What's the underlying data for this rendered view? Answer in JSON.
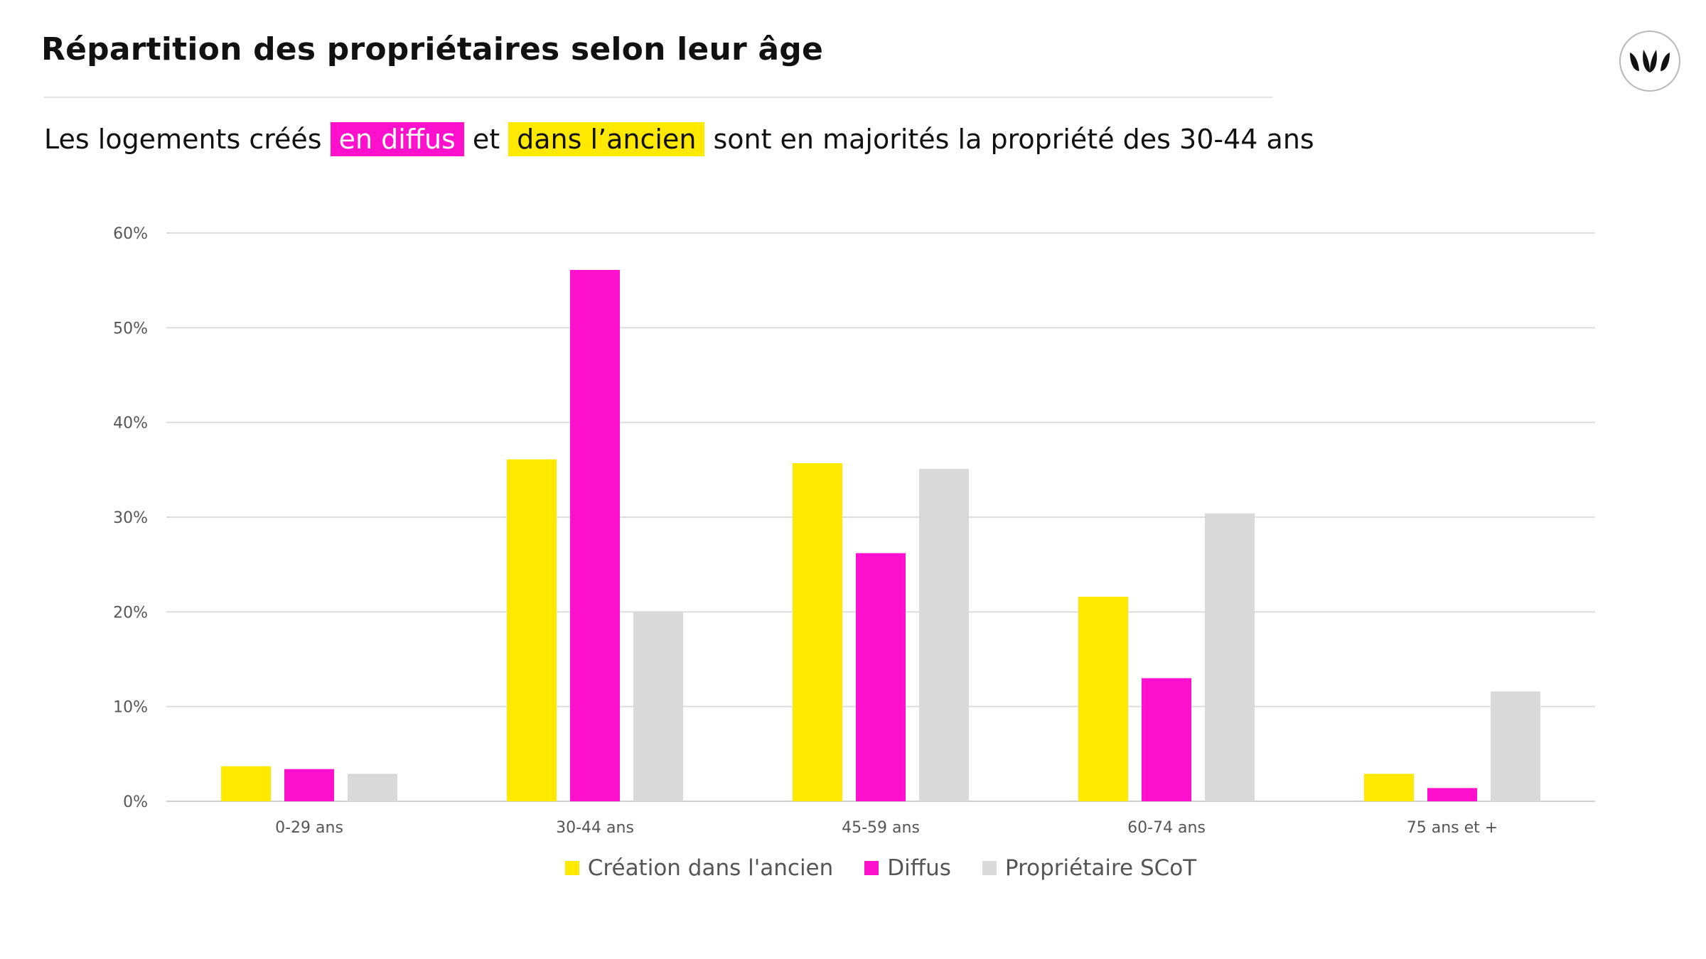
{
  "header": {
    "title": "Répartition des propriétaires selon leur âge",
    "subtitle": {
      "part1": "Les logements créés",
      "highlight1": "en  diffus",
      "part2": "et",
      "highlight2": "dans l’ancien",
      "part3": "sont en majorités la propriété des 30-44 ans"
    }
  },
  "logo": {
    "icon": "leaf-logo-icon"
  },
  "colors": {
    "yellow": "#ffe900",
    "pink": "#ff10cc",
    "grey": "#d9d9d9",
    "grid": "#dddddd",
    "axis_text": "#555555"
  },
  "chart_data": {
    "type": "bar",
    "title": "",
    "xlabel": "",
    "ylabel": "",
    "ylim": [
      0,
      60
    ],
    "yticks": [
      "0%",
      "10%",
      "20%",
      "30%",
      "40%",
      "50%",
      "60%"
    ],
    "ytick_values": [
      0,
      10,
      20,
      30,
      40,
      50,
      60
    ],
    "grid": true,
    "legend_position": "bottom",
    "categories": [
      "0-29 ans",
      "30-44 ans",
      "45-59 ans",
      "60-74 ans",
      "75 ans et +"
    ],
    "series": [
      {
        "name": "Création dans l'ancien",
        "color": "#ffe900",
        "values": [
          3.7,
          36.1,
          35.7,
          21.6,
          2.9
        ]
      },
      {
        "name": "Diffus",
        "color": "#ff10cc",
        "values": [
          3.4,
          56.1,
          26.2,
          13.0,
          1.4
        ]
      },
      {
        "name": "Propriétaire SCoT",
        "color": "#d9d9d9",
        "values": [
          2.9,
          20.0,
          35.1,
          30.4,
          11.6
        ]
      }
    ]
  }
}
